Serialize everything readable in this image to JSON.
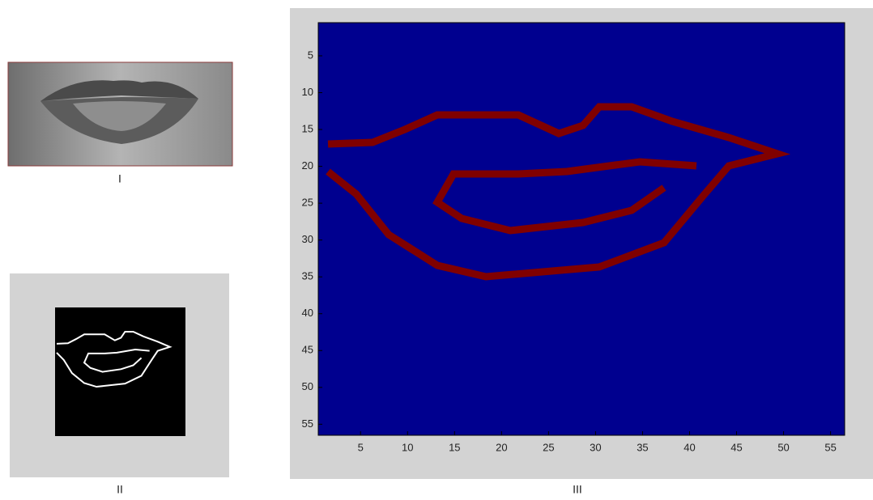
{
  "captions": [
    "I",
    "II",
    "III"
  ],
  "chart_data": {
    "type": "image",
    "xlim": [
      0.5,
      56.5
    ],
    "ylim": [
      0.5,
      56.5
    ],
    "xticks": [
      5,
      10,
      15,
      20,
      25,
      30,
      35,
      40,
      45,
      50,
      55
    ],
    "yticks": [
      5,
      10,
      15,
      20,
      25,
      30,
      35,
      40,
      45,
      50,
      55
    ],
    "background": "#00008f",
    "color": "#800000",
    "grid": false
  }
}
